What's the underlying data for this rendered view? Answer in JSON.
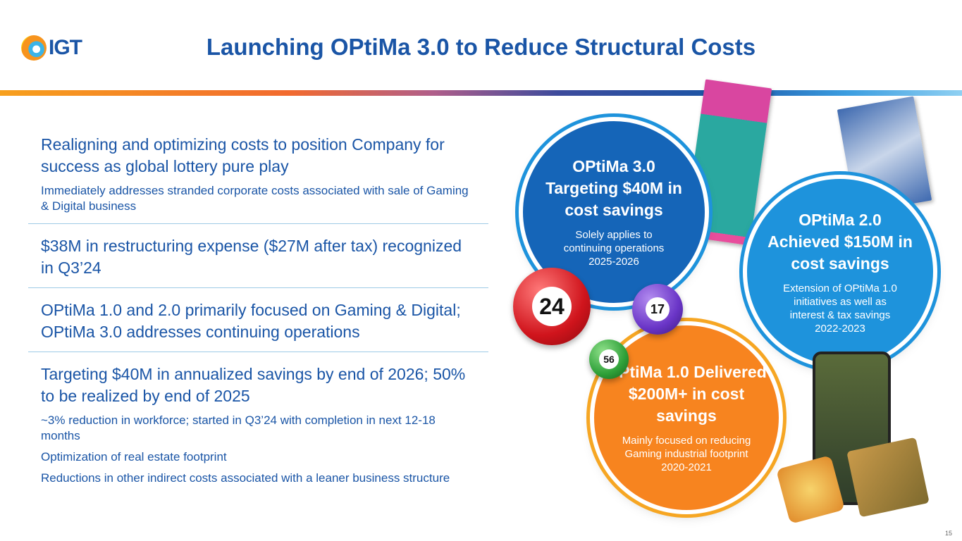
{
  "header": {
    "logo_text": "IGT",
    "title": "Launching OPtiMa 3.0 to Reduce Structural Costs"
  },
  "sections": [
    {
      "heading": "Realigning and optimizing costs to position Company for success as global lottery pure play",
      "bullets": [
        "Immediately addresses stranded corporate costs associated with sale of Gaming & Digital business"
      ]
    },
    {
      "heading": "$38M in restructuring expense ($27M after tax) recognized in Q3’24",
      "bullets": []
    },
    {
      "heading": "OPtiMa 1.0 and 2.0 primarily focused on Gaming & Digital; OPtiMa 3.0 addresses continuing operations",
      "bullets": []
    },
    {
      "heading": "Targeting $40M in annualized savings by end of 2026; 50% to be realized by end of 2025",
      "bullets": [
        "~3% reduction in workforce; started in Q3’24 with completion in next 12-18 months",
        "Optimization of real estate footprint",
        "Reductions in other indirect costs associated with a leaner business structure"
      ]
    }
  ],
  "circles": {
    "optima3": {
      "title": "OPtiMa 3.0 Targeting $40M in cost savings",
      "desc": "Solely applies to continuing operations",
      "years": "2025-2026",
      "color": "#1565b8"
    },
    "optima2": {
      "title": "OPtiMa 2.0 Achieved $150M in cost savings",
      "desc": "Extension of OPtiMa 1.0 initiatives as well as interest & tax savings",
      "years": "2022-2023",
      "color": "#1e93dc"
    },
    "optima1": {
      "title": "OPtiMa 1.0 Delivered $200M+ in cost savings",
      "desc": "Mainly focused on reducing Gaming industrial footprint",
      "years": "2020-2021",
      "color": "#f7841f"
    }
  },
  "balls": [
    "24",
    "17",
    "56"
  ],
  "page_number": "15"
}
